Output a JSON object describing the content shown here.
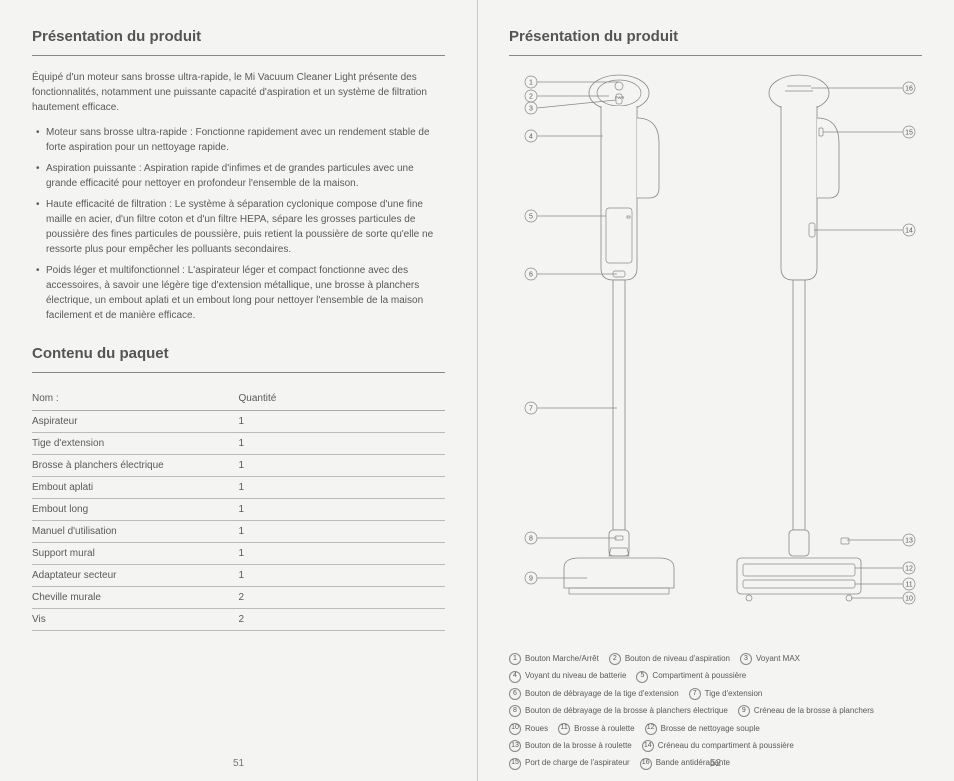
{
  "left": {
    "heading1": "Présentation du produit",
    "intro": "Équipé d'un moteur sans brosse ultra-rapide, le Mi Vacuum Cleaner Light présente des fonctionnalités, notamment une puissante capacité d'aspiration et un système de filtration hautement efficace.",
    "bullets": [
      "Moteur sans brosse ultra-rapide : Fonctionne rapidement avec un rendement stable de forte aspiration pour un nettoyage rapide.",
      "Aspiration puissante : Aspiration rapide d'infimes et de grandes particules avec une grande efficacité pour nettoyer en profondeur l'ensemble de la maison.",
      "Haute efficacité de filtration : Le système à séparation cyclonique compose d'une fine maille en acier, d'un filtre coton et d'un filtre HEPA, sépare les grosses particules de poussière des fines particules de poussière, puis retient la poussière de sorte qu'elle ne ressorte plus pour empêcher les polluants secondaires.",
      "Poids léger et multifonctionnel : L'aspirateur léger et compact fonctionne avec des accessoires, à savoir une légère tige d'extension métallique, une brosse à planchers électrique, un embout aplati et un embout long pour nettoyer l'ensemble de la maison facilement et de manière efficace."
    ],
    "heading2": "Contenu du paquet",
    "table": {
      "col1": "Nom :",
      "col2": "Quantité",
      "rows": [
        [
          "Aspirateur",
          "1"
        ],
        [
          "Tige d'extension",
          "1"
        ],
        [
          "Brosse à planchers électrique",
          "1"
        ],
        [
          "Embout aplati",
          "1"
        ],
        [
          "Embout long",
          "1"
        ],
        [
          "Manuel d'utilisation",
          "1"
        ],
        [
          "Support mural",
          "1"
        ],
        [
          "Adaptateur secteur",
          "1"
        ],
        [
          "Cheville murale",
          "2"
        ],
        [
          "Vis",
          "2"
        ]
      ]
    },
    "pagenum": "51"
  },
  "right": {
    "heading": "Présentation du produit",
    "callouts_left": [
      "1",
      "2",
      "3",
      "4",
      "5",
      "6",
      "7",
      "8",
      "9"
    ],
    "callouts_right": [
      "16",
      "15",
      "14",
      "13",
      "12",
      "11",
      "10"
    ],
    "legend": [
      {
        "n": "1",
        "t": "Bouton Marche/Arrêt"
      },
      {
        "n": "2",
        "t": "Bouton de niveau d'aspiration"
      },
      {
        "n": "3",
        "t": "Voyant MAX"
      },
      {
        "n": "4",
        "t": "Voyant du niveau de batterie"
      },
      {
        "n": "5",
        "t": "Compartiment à poussière"
      },
      {
        "n": "6",
        "t": "Bouton de débrayage de la tige d'extension"
      },
      {
        "n": "7",
        "t": "Tige d'extension"
      },
      {
        "n": "8",
        "t": "Bouton de débrayage de la brosse à planchers électrique"
      },
      {
        "n": "9",
        "t": "Créneau de la brosse à planchers"
      },
      {
        "n": "10",
        "t": "Roues"
      },
      {
        "n": "11",
        "t": "Brosse à roulette"
      },
      {
        "n": "12",
        "t": "Brosse de nettoyage souple"
      },
      {
        "n": "13",
        "t": "Bouton de la brosse à roulette"
      },
      {
        "n": "14",
        "t": "Créneau du compartiment à poussière"
      },
      {
        "n": "15",
        "t": "Port de charge de l'aspirateur"
      },
      {
        "n": "16",
        "t": "Bande antidérapante"
      }
    ],
    "legend_rows": [
      [
        0,
        1,
        2
      ],
      [
        3,
        4
      ],
      [
        5,
        6
      ],
      [
        7,
        8
      ],
      [
        9,
        10,
        11
      ],
      [
        12,
        13
      ],
      [
        14,
        15
      ]
    ],
    "pagenum": "52",
    "pwr_label": "PWR"
  }
}
